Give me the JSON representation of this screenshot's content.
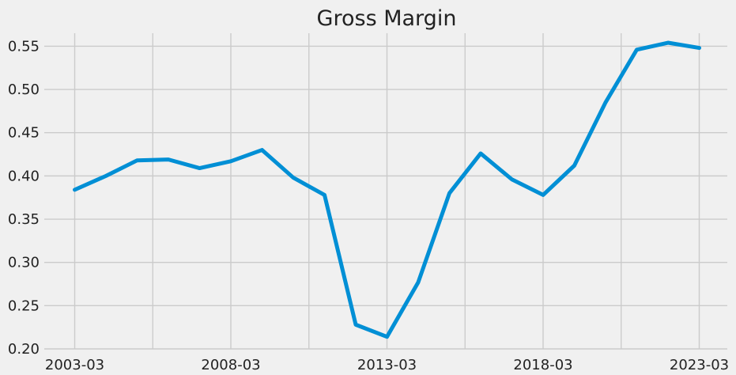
{
  "chart_data": {
    "type": "line",
    "title": "Gross Margin",
    "xlabel": "",
    "ylabel": "",
    "grid": true,
    "line_color": "#008fd5",
    "x": [
      "2003-03",
      "2004-03",
      "2005-03",
      "2006-03",
      "2007-03",
      "2008-03",
      "2009-03",
      "2010-03",
      "2011-03",
      "2012-03",
      "2013-03",
      "2014-03",
      "2015-03",
      "2016-03",
      "2017-03",
      "2018-03",
      "2019-03",
      "2020-03",
      "2021-03",
      "2022-03",
      "2023-03"
    ],
    "series": [
      {
        "values": [
          0.384,
          0.4,
          0.418,
          0.419,
          0.409,
          0.417,
          0.43,
          0.398,
          0.378,
          0.228,
          0.214,
          0.277,
          0.38,
          0.426,
          0.396,
          0.378,
          0.412,
          0.485,
          0.546,
          0.554,
          0.548
        ]
      }
    ],
    "ylim": [
      0.2,
      0.565
    ],
    "yticks": [
      "0.20",
      "0.25",
      "0.30",
      "0.35",
      "0.40",
      "0.45",
      "0.50",
      "0.55"
    ],
    "xtick_labels": [
      "2003-03",
      "2008-03",
      "2013-03",
      "2018-03",
      "2023-03"
    ],
    "x_minor_grid": [
      "2005-09",
      "2010-09",
      "2015-09",
      "2020-09"
    ]
  }
}
